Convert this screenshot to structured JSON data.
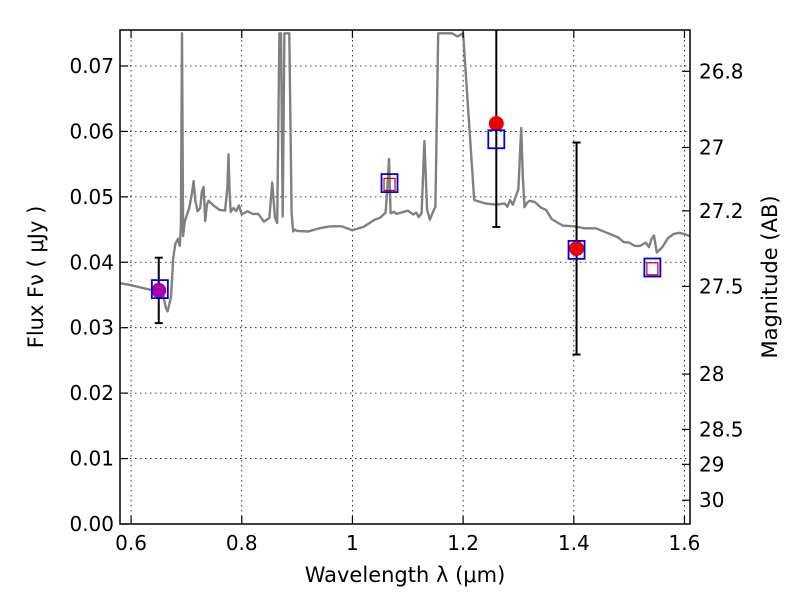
{
  "chart_data": {
    "type": "line",
    "xlabel": "Wavelength  λ (μm)",
    "ylabel": "Flux  Fν  ( μJy )",
    "ylabel_right": "Magnitude (AB)",
    "xlim": [
      0.58,
      1.61
    ],
    "ylim": [
      0.0,
      0.0755
    ],
    "x_ticks": [
      0.6,
      0.8,
      1.0,
      1.2,
      1.4,
      1.6
    ],
    "x_tick_labels": [
      "0.6",
      "0.8",
      "1",
      "1.2",
      "1.4",
      "1.6"
    ],
    "y_ticks": [
      0.0,
      0.01,
      0.02,
      0.03,
      0.04,
      0.05,
      0.06,
      0.07
    ],
    "y_tick_labels": [
      "0.00",
      "0.01",
      "0.02",
      "0.03",
      "0.04",
      "0.05",
      "0.06",
      "0.07"
    ],
    "magnitude_ticks": [
      26.8,
      27,
      27.2,
      27.5,
      28,
      28.5,
      29,
      30
    ],
    "magnitude_tick_labels": [
      "26.8",
      "27",
      "27.2",
      "27.5",
      "28",
      "28.5",
      "29",
      "30"
    ],
    "grid": true,
    "colors": {
      "model_spectrum": "#808080",
      "observed": "#ee0000",
      "model_photometry": "#0000dd",
      "synthetic": "#cc0000",
      "blended_point": "#aa00aa",
      "error_bar": "#000000"
    },
    "series": [
      {
        "kind": "spectrum",
        "x": [
          0.58,
          0.6,
          0.62,
          0.635,
          0.645,
          0.652,
          0.658,
          0.663,
          0.666,
          0.669,
          0.672,
          0.674,
          0.676,
          0.68,
          0.685,
          0.688,
          0.69,
          0.692,
          0.694,
          0.697,
          0.7,
          0.705,
          0.71,
          0.713,
          0.716,
          0.72,
          0.725,
          0.728,
          0.731,
          0.734,
          0.737,
          0.74,
          0.75,
          0.76,
          0.77,
          0.774,
          0.776,
          0.778,
          0.78,
          0.785,
          0.79,
          0.795,
          0.8,
          0.81,
          0.82,
          0.83,
          0.84,
          0.85,
          0.855,
          0.86,
          0.864,
          0.868,
          0.871,
          0.874,
          0.877,
          0.88,
          0.883,
          0.886,
          0.89,
          0.893,
          0.896,
          0.9,
          0.92,
          0.94,
          0.96,
          0.98,
          1.0,
          1.02,
          1.04,
          1.05,
          1.06,
          1.063,
          1.066,
          1.069,
          1.075,
          1.08,
          1.1,
          1.11,
          1.115,
          1.12,
          1.125,
          1.13,
          1.135,
          1.14,
          1.145,
          1.15,
          1.155,
          1.16,
          1.165,
          1.17,
          1.18,
          1.19,
          1.2,
          1.22,
          1.24,
          1.26,
          1.275,
          1.28,
          1.285,
          1.29,
          1.3,
          1.305,
          1.308,
          1.311,
          1.315,
          1.32,
          1.33,
          1.34,
          1.35,
          1.36,
          1.38,
          1.4,
          1.42,
          1.44,
          1.46,
          1.48,
          1.49,
          1.5,
          1.51,
          1.52,
          1.53,
          1.536,
          1.54,
          1.545,
          1.55,
          1.56,
          1.57,
          1.58,
          1.59,
          1.6,
          1.61
        ],
        "y": [
          0.0368,
          0.0365,
          0.0361,
          0.0358,
          0.0355,
          0.0352,
          0.035,
          0.033,
          0.0325,
          0.0336,
          0.0346,
          0.0372,
          0.0405,
          0.0428,
          0.0436,
          0.0425,
          0.0455,
          0.075,
          0.044,
          0.0462,
          0.047,
          0.0483,
          0.0505,
          0.0524,
          0.0495,
          0.0478,
          0.0483,
          0.0508,
          0.0515,
          0.0463,
          0.0488,
          0.0494,
          0.0486,
          0.048,
          0.0479,
          0.0515,
          0.0565,
          0.0505,
          0.0477,
          0.0483,
          0.0478,
          0.0487,
          0.0473,
          0.0478,
          0.0474,
          0.0474,
          0.0462,
          0.0468,
          0.0522,
          0.0468,
          0.046,
          0.075,
          0.075,
          0.047,
          0.075,
          0.075,
          0.075,
          0.075,
          0.0475,
          0.0447,
          0.045,
          0.0448,
          0.0447,
          0.0452,
          0.0455,
          0.0455,
          0.0449,
          0.0454,
          0.0465,
          0.0468,
          0.0476,
          0.0512,
          0.0558,
          0.0475,
          0.0477,
          0.0474,
          0.0479,
          0.0473,
          0.0476,
          0.0469,
          0.0475,
          0.0585,
          0.048,
          0.0465,
          0.0476,
          0.0485,
          0.075,
          0.075,
          0.075,
          0.075,
          0.075,
          0.0745,
          0.075,
          0.0495,
          0.049,
          0.0488,
          0.049,
          0.0485,
          0.0495,
          0.0488,
          0.0512,
          0.0605,
          0.0528,
          0.0484,
          0.049,
          0.0494,
          0.0492,
          0.0484,
          0.048,
          0.0466,
          0.0456,
          0.0455,
          0.0452,
          0.0452,
          0.0445,
          0.0438,
          0.0431,
          0.043,
          0.0425,
          0.0425,
          0.043,
          0.0423,
          0.0435,
          0.0441,
          0.0415,
          0.0423,
          0.0437,
          0.0443,
          0.0445,
          0.0443,
          0.044
        ]
      },
      {
        "kind": "observed-flux",
        "points": [
          {
            "x": 0.65,
            "y": 0.0357,
            "err": 0.005
          },
          {
            "x": 1.26,
            "y": 0.0612,
            "err": 0.0158
          },
          {
            "x": 1.405,
            "y": 0.0421,
            "err": 0.0162
          }
        ]
      },
      {
        "kind": "model-photometry",
        "points": [
          {
            "x": 0.652,
            "y": 0.0359
          },
          {
            "x": 1.067,
            "y": 0.0521
          },
          {
            "x": 1.26,
            "y": 0.0588
          },
          {
            "x": 1.405,
            "y": 0.0419
          },
          {
            "x": 1.542,
            "y": 0.0392
          }
        ]
      },
      {
        "kind": "synthetic-photometry",
        "points": [
          {
            "x": 1.067,
            "y": 0.0519
          },
          {
            "x": 1.542,
            "y": 0.039
          }
        ]
      }
    ]
  }
}
